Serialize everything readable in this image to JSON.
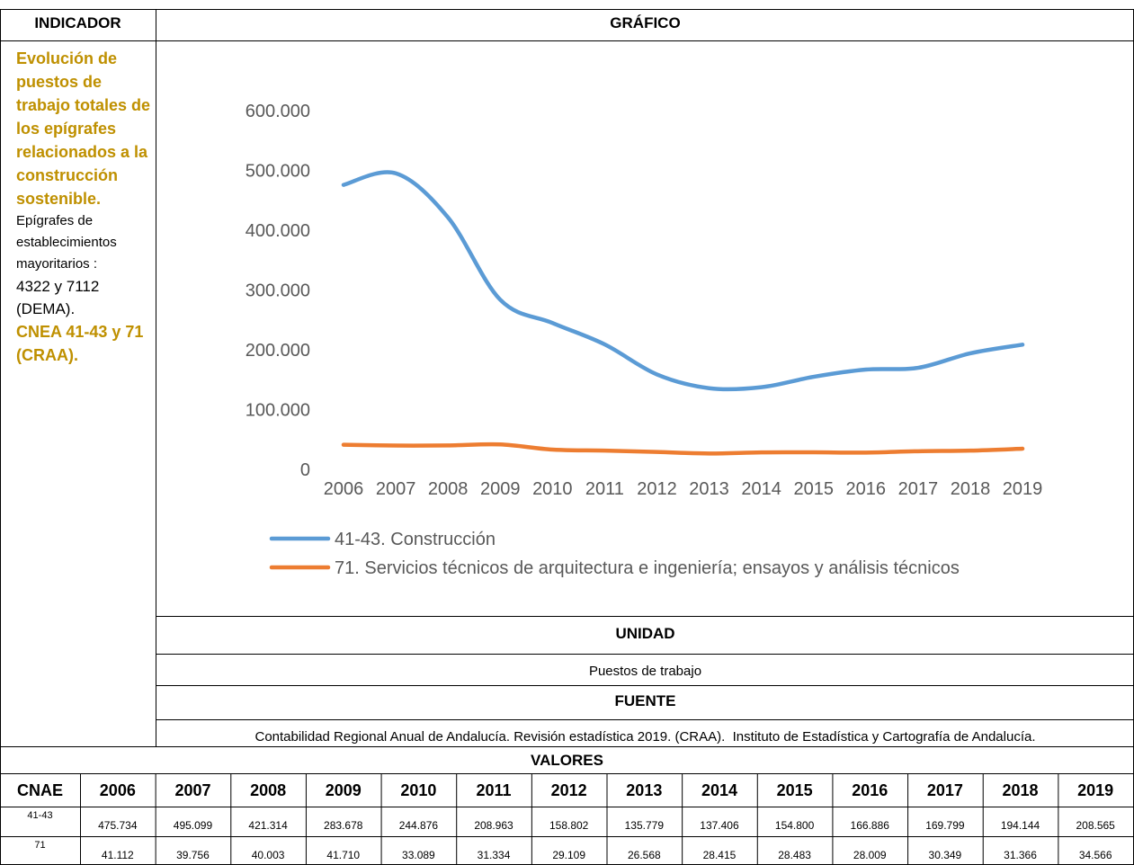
{
  "header": {
    "indicator": "INDICADOR",
    "chart": "GRÁFICO"
  },
  "indicator": {
    "title": "Evolución de puestos de trabajo totales de los epígrafes relacionados a la construcción sostenible.",
    "note": "Epígrafes de establecimientos mayoritarios :",
    "codes": "4322 y 7112 (DEMA).",
    "cnae": "CNEA 41-43 y 71 (CRAA)."
  },
  "chart_data": {
    "type": "line",
    "categories": [
      "2006",
      "2007",
      "2008",
      "2009",
      "2010",
      "2011",
      "2012",
      "2013",
      "2014",
      "2015",
      "2016",
      "2017",
      "2018",
      "2019"
    ],
    "series": [
      {
        "name": "41-43. Construcción",
        "color": "#5b9bd5",
        "values": [
          475734,
          495099,
          421314,
          283678,
          244876,
          208963,
          158802,
          135779,
          137406,
          154800,
          166886,
          169799,
          194144,
          208565
        ]
      },
      {
        "name": "71. Servicios técnicos de arquitectura e ingeniería; ensayos y análisis técnicos",
        "color": "#ed7d31",
        "values": [
          41112,
          39756,
          40003,
          41710,
          33089,
          31334,
          29109,
          26568,
          28415,
          28483,
          28009,
          30349,
          31366,
          34566
        ]
      }
    ],
    "ylim": [
      0,
      600000
    ],
    "yticks": [
      0,
      {
        "value": 100000,
        "label": "100.000"
      },
      {
        "value": 200000,
        "label": "200.000"
      },
      {
        "value": 300000,
        "label": "300.000"
      },
      {
        "value": 400000,
        "label": "400.000"
      },
      {
        "value": 500000,
        "label": "500.000"
      },
      {
        "value": 600000,
        "label": "600.000"
      }
    ],
    "smooth": true,
    "legend": "bottom"
  },
  "unit": {
    "heading": "UNIDAD",
    "text": "Puestos de trabajo"
  },
  "source": {
    "heading": "FUENTE",
    "text": "Contabilidad Regional Anual de Andalucía. Revisión estadística 2019. (CRAA).  Instituto de Estadística y Cartografía de Andalucía."
  },
  "table": {
    "heading": "VALORES",
    "header": [
      "CNAE",
      "2006",
      "2007",
      "2008",
      "2009",
      "2010",
      "2011",
      "2012",
      "2013",
      "2014",
      "2015",
      "2016",
      "2017",
      "2018",
      "2019"
    ],
    "rows": [
      [
        "41-43",
        "475.734",
        "495.099",
        "421.314",
        "283.678",
        "244.876",
        "208.963",
        "158.802",
        "135.779",
        "137.406",
        "154.800",
        "166.886",
        "169.799",
        "194.144",
        "208.565"
      ],
      [
        "71",
        "41.112",
        "39.756",
        "40.003",
        "41.710",
        "33.089",
        "31.334",
        "29.109",
        "26.568",
        "28.415",
        "28.483",
        "28.009",
        "30.349",
        "31.366",
        "34.566"
      ]
    ]
  }
}
